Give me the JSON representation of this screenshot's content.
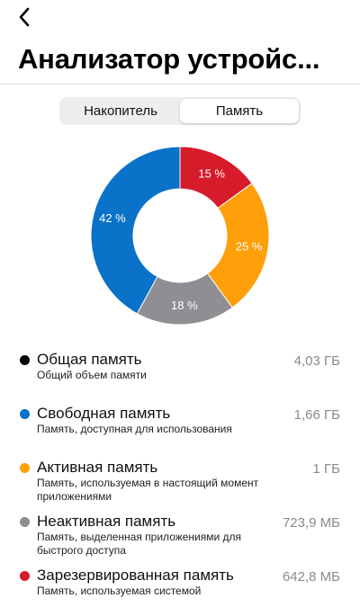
{
  "header": {
    "back_icon": "chevron-left-icon",
    "title": "Анализатор устройс..."
  },
  "tabs": [
    {
      "label": "Накопитель",
      "selected": false
    },
    {
      "label": "Память",
      "selected": true
    }
  ],
  "chart_data": {
    "type": "pie",
    "style": "donut",
    "slices": [
      {
        "label": "Зарезервированная память",
        "value": 15,
        "display": "15 %",
        "color": "#d61b2a"
      },
      {
        "label": "Активная память",
        "value": 25,
        "display": "25 %",
        "color": "#ff9f0a"
      },
      {
        "label": "Неактивная память",
        "value": 18,
        "display": "18 %",
        "color": "#8e8e93"
      },
      {
        "label": "Свободная память",
        "value": 42,
        "display": "42 %",
        "color": "#0a72c8"
      }
    ]
  },
  "legend": [
    {
      "name": "Общая память",
      "description": "Общий объем памяти",
      "value": "4,03 ГБ",
      "color": "#000000"
    },
    {
      "name": "Свободная память",
      "description": "Память, доступная для использования",
      "value": "1,66 ГБ",
      "color": "#0a72c8"
    },
    {
      "name": "Активная память",
      "description": "Память, используемая в настоящий момент приложениями",
      "value": "1 ГБ",
      "color": "#ff9f0a"
    },
    {
      "name": "Неактивная память",
      "description": "Память, выделенная приложениями для быстрого доступа",
      "value": "723,9 МБ",
      "color": "#8e8e93"
    },
    {
      "name": "Зарезервированная память",
      "description": "Память, используемая системой",
      "value": "642,8 МБ",
      "color": "#d61b2a"
    }
  ]
}
